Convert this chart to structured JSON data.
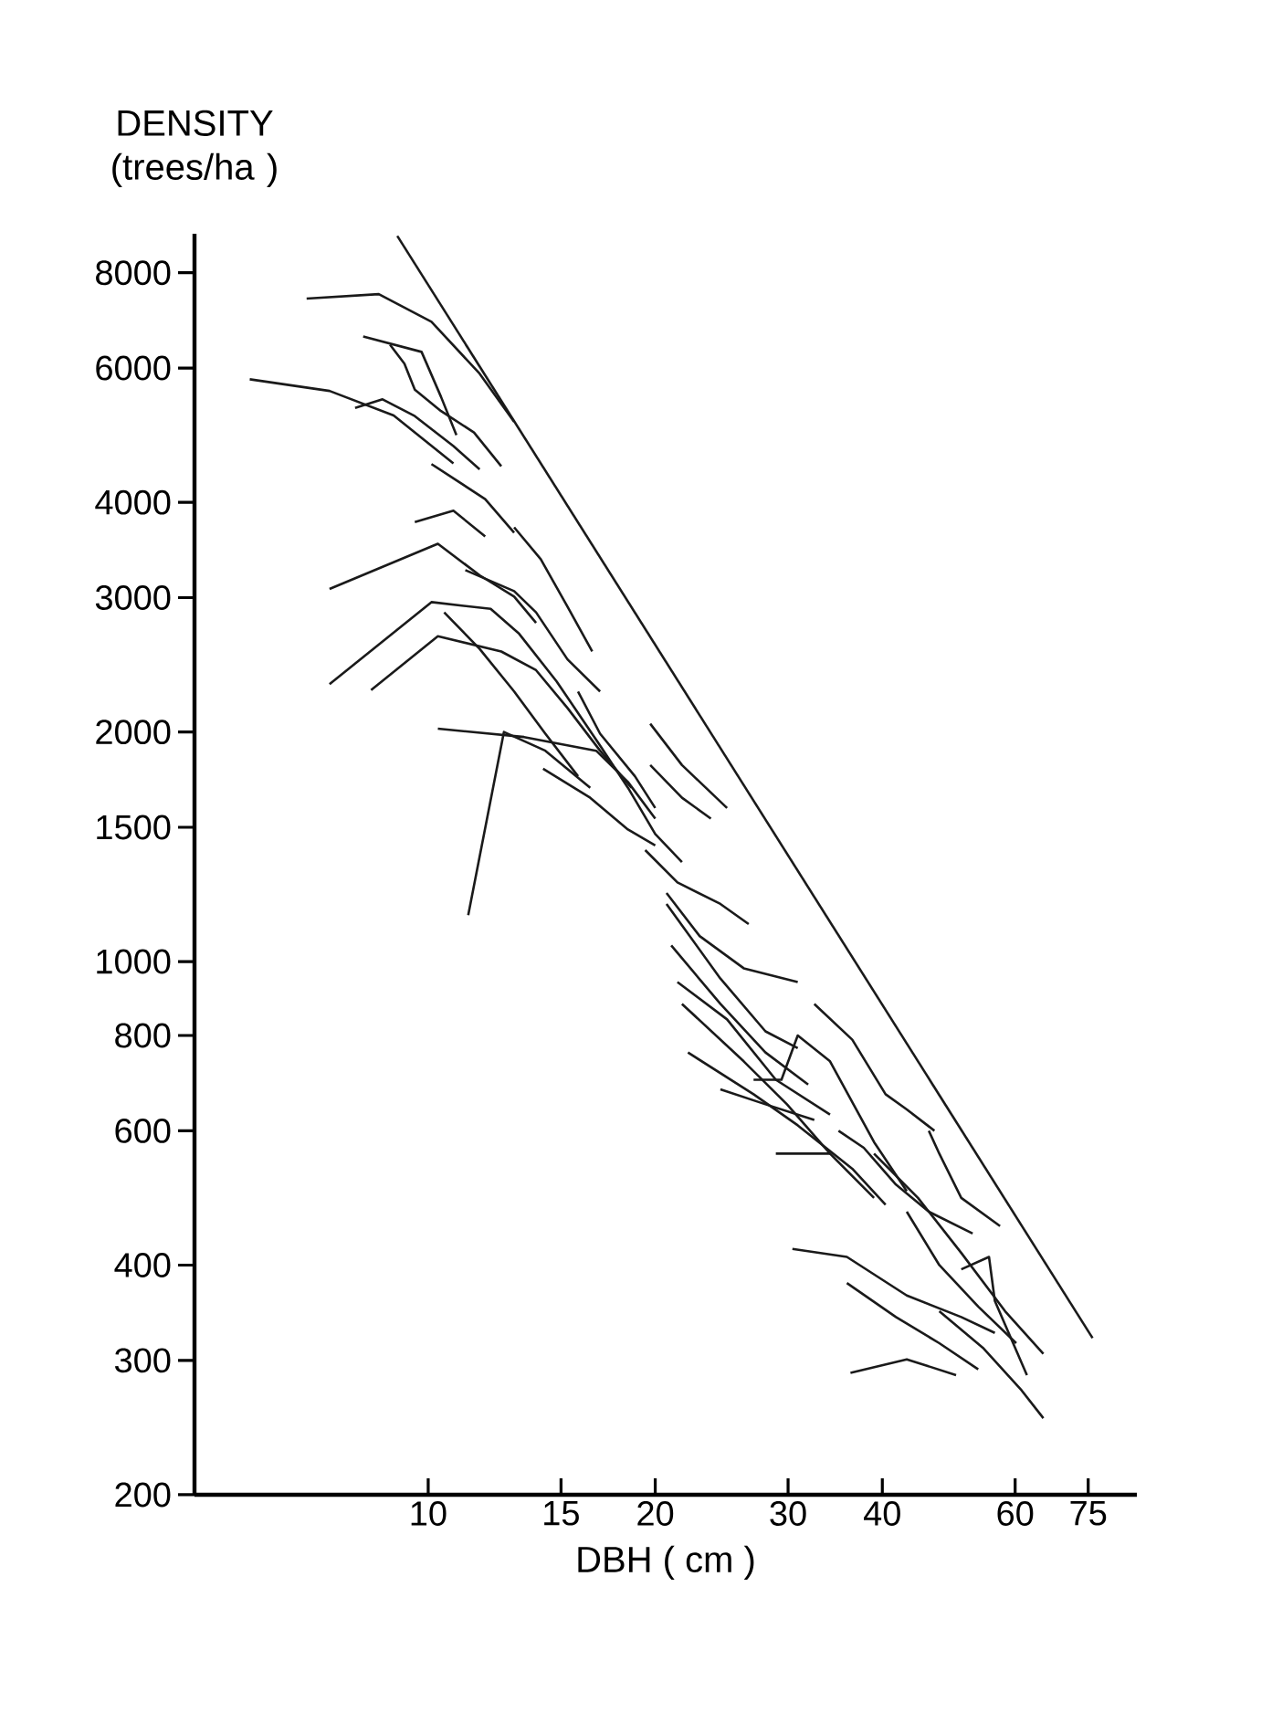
{
  "chart_data": {
    "type": "line",
    "xlabel": "DBH ( cm )",
    "ylabel": "DENSITY (trees/ha )",
    "log": "xy",
    "xlim": [
      4.9,
      87
    ],
    "ylim": [
      200,
      9000
    ],
    "xticks": [
      10,
      15,
      20,
      30,
      40,
      60,
      75
    ],
    "yticks": [
      200,
      300,
      400,
      600,
      800,
      1000,
      1500,
      2000,
      3000,
      4000,
      6000,
      8000
    ],
    "series": [
      {
        "color": "#1a1a1a",
        "x": [
          9.1,
          76
        ],
        "values": [
          8940,
          321
        ]
      },
      {
        "color": "#1a1a1a",
        "x": [
          6.9,
          8.6,
          10.1,
          11.7,
          13.0
        ],
        "values": [
          7400,
          7500,
          6900,
          5900,
          5100
        ]
      },
      {
        "color": "#1a1a1a",
        "x": [
          5.8,
          7.4,
          9.0,
          10.8
        ],
        "values": [
          5800,
          5600,
          5200,
          4500
        ]
      },
      {
        "color": "#1a1a1a",
        "x": [
          8.2,
          9.8,
          10.4,
          10.9
        ],
        "values": [
          6600,
          6300,
          5500,
          4900
        ]
      },
      {
        "color": "#1a1a1a",
        "x": [
          8.9,
          9.3,
          9.6,
          10.4,
          11.5,
          12.5
        ],
        "values": [
          6440,
          6080,
          5620,
          5270,
          4940,
          4460
        ]
      },
      {
        "color": "#1a1a1a",
        "x": [
          8.0,
          8.7,
          9.6,
          10.8,
          11.7
        ],
        "values": [
          5320,
          5460,
          5190,
          4740,
          4420
        ]
      },
      {
        "color": "#1a1a1a",
        "x": [
          10.1,
          11.9,
          13.0
        ],
        "values": [
          4490,
          4040,
          3650
        ]
      },
      {
        "color": "#1a1a1a",
        "x": [
          13.0,
          14.1,
          15.3,
          16.5
        ],
        "values": [
          3710,
          3370,
          2920,
          2550
        ]
      },
      {
        "color": "#1a1a1a",
        "x": [
          9.6,
          10.8,
          11.9
        ],
        "values": [
          3770,
          3900,
          3610
        ]
      },
      {
        "color": "#1a1a1a",
        "x": [
          7.4,
          10.3,
          11.7,
          13.0,
          13.9
        ],
        "values": [
          3080,
          3530,
          3210,
          3010,
          2780
        ]
      },
      {
        "color": "#1a1a1a",
        "x": [
          7.4,
          10.1,
          12.1,
          13.2,
          14.8,
          16.9,
          18.4,
          20.0,
          21.7
        ],
        "values": [
          2310,
          2960,
          2900,
          2690,
          2330,
          1920,
          1690,
          1470,
          1350
        ]
      },
      {
        "color": "#1a1a1a",
        "x": [
          8.4,
          10.3,
          12.5,
          13.9,
          15.3,
          16.9,
          18.6
        ],
        "values": [
          2270,
          2670,
          2550,
          2410,
          2150,
          1890,
          1690
        ]
      },
      {
        "color": "#1a1a1a",
        "x": [
          11.2,
          13.0,
          13.9,
          15.3,
          16.9
        ],
        "values": [
          3260,
          3060,
          2870,
          2490,
          2260
        ]
      },
      {
        "color": "#1a1a1a",
        "x": [
          10.5,
          11.7,
          13.0,
          14.3,
          15.8
        ],
        "values": [
          2870,
          2570,
          2260,
          1990,
          1750
        ]
      },
      {
        "color": "#1a1a1a",
        "x": [
          10.3,
          13.4,
          16.7,
          18.4,
          20.0
        ],
        "values": [
          2020,
          1970,
          1890,
          1720,
          1540
        ]
      },
      {
        "color": "#1a1a1a",
        "x": [
          11.3,
          12.6,
          14.3,
          16.4
        ],
        "values": [
          1150,
          2000,
          1890,
          1690
        ]
      },
      {
        "color": "#1a1a1a",
        "x": [
          14.2,
          16.4,
          18.4,
          20.0
        ],
        "values": [
          1790,
          1640,
          1490,
          1420
        ]
      },
      {
        "color": "#1a1a1a",
        "x": [
          15.8,
          16.9,
          18.8,
          20.0
        ],
        "values": [
          2260,
          1990,
          1750,
          1590
        ]
      },
      {
        "color": "#1a1a1a",
        "x": [
          19.7,
          21.7,
          24.9
        ],
        "values": [
          2050,
          1810,
          1590
        ]
      },
      {
        "color": "#1a1a1a",
        "x": [
          19.7,
          21.7,
          23.7
        ],
        "values": [
          1810,
          1640,
          1540
        ]
      },
      {
        "color": "#1a1a1a",
        "x": [
          19.4,
          21.4,
          24.4,
          26.6
        ],
        "values": [
          1400,
          1270,
          1190,
          1120
        ]
      },
      {
        "color": "#1a1a1a",
        "x": [
          20.7,
          22.9,
          26.2,
          30.9
        ],
        "values": [
          1230,
          1080,
          980,
          940
        ]
      },
      {
        "color": "#1a1a1a",
        "x": [
          20.7,
          24.4,
          28.0,
          30.9
        ],
        "values": [
          1190,
          950,
          810,
          770
        ]
      },
      {
        "color": "#1a1a1a",
        "x": [
          21.0,
          24.4,
          28.0,
          31.9
        ],
        "values": [
          1050,
          880,
          760,
          690
        ]
      },
      {
        "color": "#1a1a1a",
        "x": [
          21.4,
          24.9,
          28.9,
          34.1
        ],
        "values": [
          940,
          840,
          700,
          630
        ]
      },
      {
        "color": "#1a1a1a",
        "x": [
          21.7,
          26.2,
          29.9,
          34.1,
          39.0
        ],
        "values": [
          880,
          740,
          650,
          560,
          490
        ]
      },
      {
        "color": "#1a1a1a",
        "x": [
          22.1,
          27.0,
          30.9,
          36.5,
          40.4
        ],
        "values": [
          760,
          670,
          610,
          535,
          480
        ]
      },
      {
        "color": "#1a1a1a",
        "x": [
          24.4,
          28.0,
          32.5
        ],
        "values": [
          680,
          650,
          620
        ]
      },
      {
        "color": "#1a1a1a",
        "x": [
          27.0,
          29.4,
          30.9,
          34.1,
          39.0,
          43.1
        ],
        "values": [
          700,
          700,
          800,
          740,
          580,
          500
        ]
      },
      {
        "color": "#1a1a1a",
        "x": [
          28.9,
          34.1
        ],
        "values": [
          560,
          560
        ]
      },
      {
        "color": "#1a1a1a",
        "x": [
          32.5,
          36.5,
          40.4,
          43.1,
          46.9
        ],
        "values": [
          880,
          790,
          670,
          640,
          600
        ]
      },
      {
        "color": "#1a1a1a",
        "x": [
          35.0,
          37.8,
          41.7,
          46.1,
          52.7
        ],
        "values": [
          600,
          570,
          510,
          470,
          440
        ]
      },
      {
        "color": "#1a1a1a",
        "x": [
          46.1,
          47.6,
          50.9,
          57.3
        ],
        "values": [
          600,
          560,
          490,
          450
        ]
      },
      {
        "color": "#1a1a1a",
        "x": [
          30.4,
          35.9,
          43.1,
          50.9,
          56.4
        ],
        "values": [
          420,
          410,
          365,
          342,
          326
        ]
      },
      {
        "color": "#1a1a1a",
        "x": [
          35.9,
          41.7,
          47.6,
          53.6
        ],
        "values": [
          379,
          342,
          316,
          292
        ]
      },
      {
        "color": "#1a1a1a",
        "x": [
          36.3,
          43.1,
          50.1
        ],
        "values": [
          289,
          301,
          287
        ]
      },
      {
        "color": "#1a1a1a",
        "x": [
          39.0,
          44.6,
          50.9,
          58.2,
          65.4
        ],
        "values": [
          560,
          490,
          415,
          348,
          306
        ]
      },
      {
        "color": "#1a1a1a",
        "x": [
          43.1,
          47.6,
          53.6,
          60.2
        ],
        "values": [
          470,
          400,
          353,
          316
        ]
      },
      {
        "color": "#1a1a1a",
        "x": [
          50.9,
          55.4,
          56.4,
          62.2
        ],
        "values": [
          395,
          410,
          359,
          287
        ]
      },
      {
        "color": "#1a1a1a",
        "x": [
          47.6,
          54.5,
          61.2,
          65.4
        ],
        "values": [
          348,
          311,
          274,
          252
        ]
      }
    ]
  }
}
